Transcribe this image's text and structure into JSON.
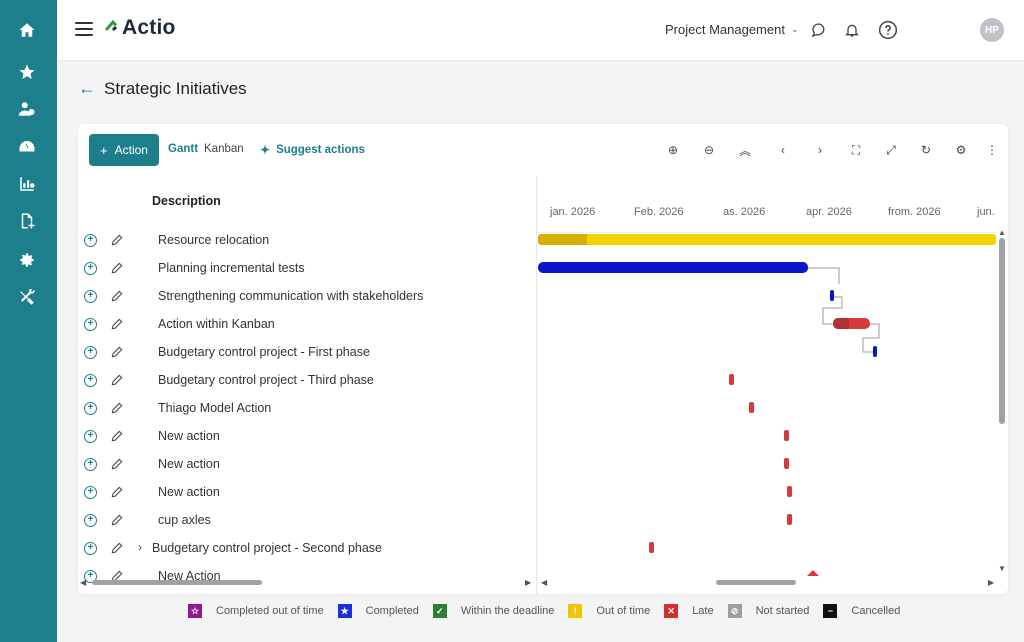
{
  "app": {
    "name": "Actio",
    "project_selector": "Project Management",
    "user_initials": "HP"
  },
  "sidebar": {
    "items": [
      {
        "icon": "home-icon"
      },
      {
        "icon": "star-icon"
      },
      {
        "icon": "users-settings-icon"
      },
      {
        "icon": "dashboard-icon"
      },
      {
        "icon": "chart-icon"
      },
      {
        "icon": "document-add-icon"
      },
      {
        "icon": "gear-icon"
      },
      {
        "icon": "tools-icon"
      }
    ]
  },
  "page": {
    "title": "Strategic Initiatives"
  },
  "toolbar": {
    "action_label": "Action",
    "tab_gantt": "Gantt",
    "tab_kanban": "Kanban",
    "suggest_label": "Suggest actions"
  },
  "table": {
    "header": "Description",
    "rows": [
      {
        "label": "Resource relocation"
      },
      {
        "label": "Planning incremental tests"
      },
      {
        "label": "Strengthening communication with stakeholders"
      },
      {
        "label": "Action within Kanban"
      },
      {
        "label": "Budgetary control project - First phase"
      },
      {
        "label": "Budgetary control project - Third phase"
      },
      {
        "label": "Thiago Model Action"
      },
      {
        "label": "New action"
      },
      {
        "label": "New action"
      },
      {
        "label": "New action"
      },
      {
        "label": "cup axles"
      },
      {
        "label": "Budgetary control project - Second phase",
        "expandable": true
      },
      {
        "label": "New Action"
      }
    ]
  },
  "timeline": {
    "months": [
      "jan. 2026",
      "Feb. 2026",
      "as. 2026",
      "apr. 2026",
      "from. 2026",
      "jun."
    ]
  },
  "legend": [
    {
      "label": "Completed out of time",
      "color": "#8e1b8e",
      "symbol": "☆"
    },
    {
      "label": "Completed",
      "color": "#1a2fd6",
      "symbol": "★"
    },
    {
      "label": "Within the deadline",
      "color": "#2e7d32",
      "symbol": "✓"
    },
    {
      "label": "Out of time",
      "color": "#f5c400",
      "symbol": "!"
    },
    {
      "label": "Late",
      "color": "#d32f2f",
      "symbol": "✕"
    },
    {
      "label": "Not started",
      "color": "#9e9e9e",
      "symbol": "⊘"
    },
    {
      "label": "Cancelled",
      "color": "#111111",
      "symbol": "−"
    }
  ]
}
